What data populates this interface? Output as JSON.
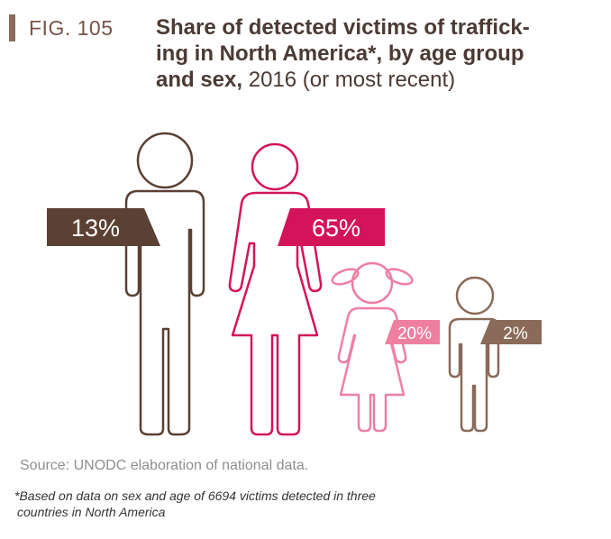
{
  "figure": {
    "label": "FIG. 105",
    "title_bold": "Share of detected victims of traffick-ing in North America*, by age group and sex,",
    "title_bold_line1": "Share of detected victims of traffick-",
    "title_bold_line2": "ing in North America*, by age group",
    "title_bold_line3": "and sex,",
    "title_regular": " 2016 (or most recent)"
  },
  "chart_data": {
    "type": "pictogram",
    "title": "Share of detected victims of trafficking in North America*, by age group and sex, 2016 (or most recent)",
    "unit": "%",
    "categories": [
      "Men",
      "Women",
      "Girls",
      "Boys"
    ],
    "values": [
      13,
      65,
      20,
      2
    ],
    "labels": [
      "13%",
      "65%",
      "20%",
      "2%"
    ],
    "colors": {
      "men": "#5b4034",
      "women": "#d4145a",
      "girls": "#ef7fa2",
      "boys": "#8a6a58"
    }
  },
  "source": "Source: UNODC elaboration of national data.",
  "footnote": {
    "line1": "*Based on data on sex and age of 6694 victims detected in three",
    "line2": "countries in North America"
  }
}
